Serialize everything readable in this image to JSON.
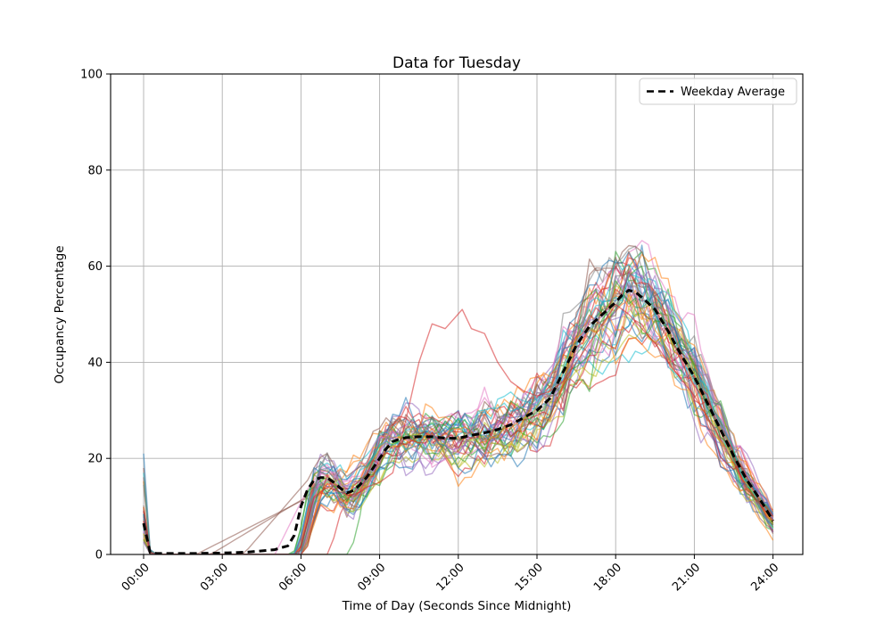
{
  "figure": {
    "title": "Data for Tuesday",
    "xlabel": "Time of Day (Seconds Since Midnight)",
    "ylabel": "Occupancy Percentage",
    "legend_label": "Weekday Average"
  },
  "chart_data": {
    "type": "line",
    "title": "Data for Tuesday",
    "xlabel": "Time of Day (Seconds Since Midnight)",
    "ylabel": "Occupancy Percentage",
    "grid": true,
    "legend_position": "upper right",
    "ylim": [
      0,
      100
    ],
    "y_ticks": [
      0,
      20,
      40,
      60,
      80,
      100
    ],
    "x_tick_hours": [
      0,
      3,
      6,
      9,
      12,
      15,
      18,
      21,
      24
    ],
    "x_tick_labels": [
      "00:00",
      "03:00",
      "06:00",
      "09:00",
      "12:00",
      "15:00",
      "18:00",
      "21:00",
      "24:00"
    ],
    "average_series": {
      "name": "Weekday Average",
      "color": "#000000",
      "style": "dashed",
      "x_hours": [
        0,
        0.25,
        0.5,
        1,
        2,
        3,
        4,
        5,
        5.5,
        5.75,
        6,
        6.25,
        6.5,
        6.75,
        7,
        7.25,
        7.5,
        7.75,
        8,
        8.25,
        8.5,
        8.75,
        9,
        9.25,
        9.5,
        9.75,
        10,
        10.5,
        11,
        11.5,
        12,
        12.5,
        13,
        13.5,
        14,
        14.5,
        15,
        15.5,
        16,
        16.5,
        17,
        17.5,
        18,
        18.25,
        18.5,
        18.75,
        19,
        19.5,
        20,
        20.5,
        21,
        21.5,
        22,
        22.5,
        23,
        23.5,
        24
      ],
      "values": [
        6.5,
        0.4,
        0.2,
        0.2,
        0.2,
        0.3,
        0.5,
        1.0,
        1.8,
        4,
        10,
        13.5,
        15.5,
        16,
        16,
        15,
        13.8,
        12.8,
        13.3,
        14.5,
        16,
        18,
        20,
        22,
        23.5,
        24,
        24.3,
        24.5,
        24.5,
        24.2,
        24.2,
        24.8,
        25.3,
        26,
        27,
        28.5,
        30,
        32.5,
        38,
        43.5,
        47.5,
        50,
        52.5,
        54,
        55,
        54.6,
        53.5,
        51,
        46.5,
        41.5,
        37,
        31.5,
        26,
        20.5,
        15.5,
        11.5,
        7
      ]
    },
    "individual_lines": {
      "count": 45,
      "alpha": 0.55,
      "seed": 20,
      "palette": [
        "#1f77b4",
        "#ff7f0e",
        "#2ca02c",
        "#d62728",
        "#9467bd",
        "#8c564b",
        "#e377c2",
        "#7f7f7f",
        "#bcbd22",
        "#17becf"
      ],
      "spread_knot_hours": [
        0,
        0.4,
        0.5,
        5.5,
        6,
        6.5,
        7,
        8,
        9,
        10,
        12,
        14,
        15,
        16,
        17,
        18,
        18.5,
        19,
        20,
        21,
        22,
        23,
        24
      ],
      "spread_values": [
        7,
        1,
        0,
        0,
        4,
        5,
        5,
        5.5,
        6,
        6.5,
        7,
        7,
        8,
        9.5,
        11,
        12,
        12,
        11.5,
        10.5,
        8.5,
        6.5,
        4.5,
        2.8
      ],
      "start_spike_value_range": [
        2,
        21
      ],
      "start_spike_highlight": {
        "index": 0,
        "value": 21
      },
      "early_risers": [
        {
          "index": 5,
          "start_hour": 2.0
        },
        {
          "index": 15,
          "start_hour": 2.55
        },
        {
          "index": 25,
          "start_hour": 3.8
        },
        {
          "index": 16,
          "start_hour": 5.0
        }
      ],
      "late_starters": [
        {
          "index": 2,
          "start_hour": 7.9
        },
        {
          "index": 13,
          "start_hour": 7.1
        }
      ],
      "midday_outlier_series": {
        "color": "#d62728",
        "x_hours": [
          0,
          0.25,
          5.9,
          6.2,
          6.5,
          7,
          7.5,
          8,
          8.5,
          9,
          9.5,
          10,
          10.5,
          11,
          11.5,
          12.15,
          12.5,
          13,
          13.5,
          14,
          14.5,
          15,
          15.5,
          16,
          16.5,
          17,
          17.5,
          18,
          18.5,
          19,
          19.5,
          20,
          21,
          22,
          23,
          24
        ],
        "values": [
          7,
          0,
          0,
          6,
          12,
          14,
          13,
          12,
          14,
          15,
          17,
          28,
          40,
          48,
          47,
          51,
          47,
          46,
          40,
          36,
          34,
          33,
          34,
          36,
          40,
          44,
          48,
          52,
          50,
          47,
          44,
          40,
          33,
          24,
          14,
          7
        ]
      }
    }
  }
}
